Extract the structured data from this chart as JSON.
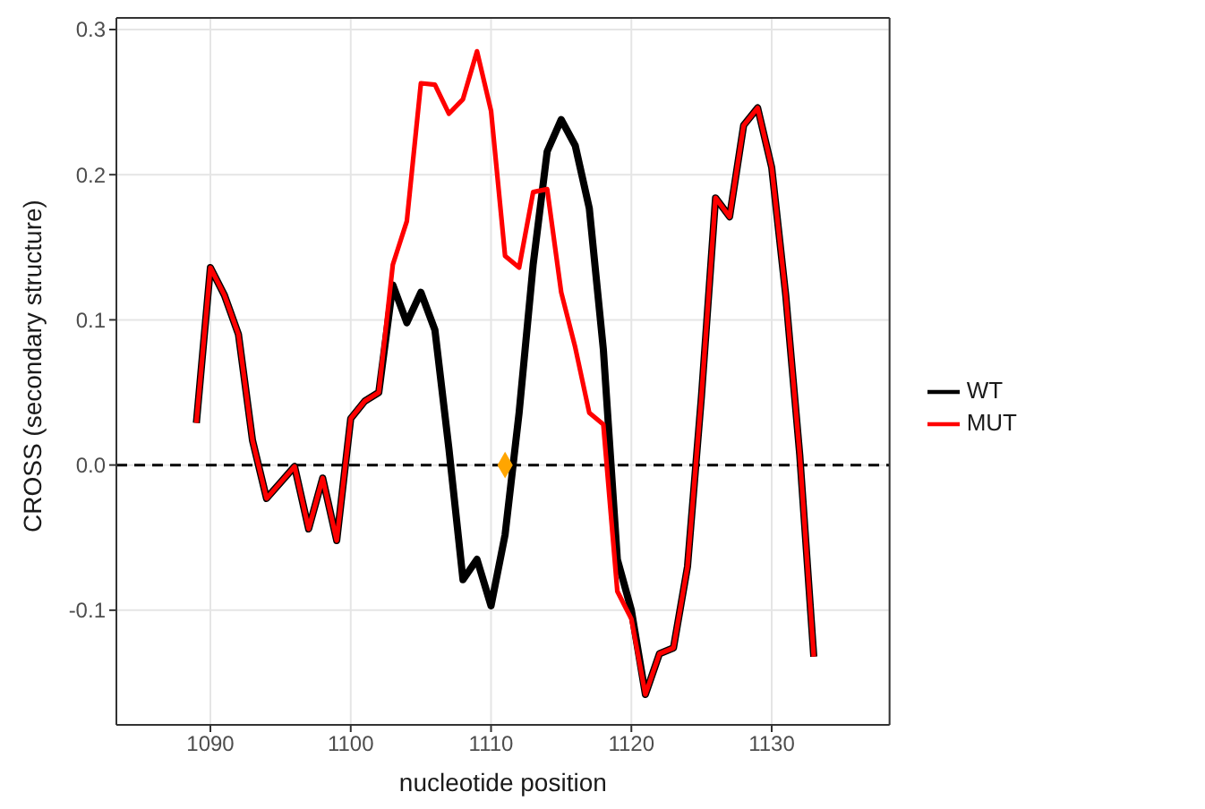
{
  "chart_data": {
    "type": "line",
    "xlabel": "nucleotide position",
    "ylabel": "CROSS (secondary structure)",
    "x": [
      1089,
      1090,
      1091,
      1092,
      1093,
      1094,
      1095,
      1096,
      1097,
      1098,
      1099,
      1100,
      1101,
      1102,
      1103,
      1104,
      1105,
      1106,
      1107,
      1108,
      1109,
      1110,
      1111,
      1112,
      1113,
      1114,
      1115,
      1116,
      1117,
      1118,
      1119,
      1120,
      1121,
      1122,
      1123,
      1124,
      1125,
      1126,
      1127,
      1128,
      1129,
      1130,
      1131,
      1132,
      1133
    ],
    "series": [
      {
        "name": "WT",
        "color": "#000000",
        "values": [
          0.029,
          0.136,
          0.117,
          0.09,
          0.017,
          -0.023,
          -0.012,
          -0.001,
          -0.044,
          -0.009,
          -0.052,
          0.032,
          0.044,
          0.05,
          0.124,
          0.098,
          0.119,
          0.093,
          0.011,
          -0.079,
          -0.065,
          -0.097,
          -0.048,
          0.036,
          0.138,
          0.216,
          0.238,
          0.22,
          0.177,
          0.08,
          -0.065,
          -0.1,
          -0.158,
          -0.13,
          -0.126,
          -0.07,
          0.048,
          0.184,
          0.171,
          0.234,
          0.246,
          0.205,
          0.117,
          0.007,
          -0.132
        ]
      },
      {
        "name": "MUT",
        "color": "#ff0000",
        "values": [
          0.029,
          0.136,
          0.117,
          0.09,
          0.017,
          -0.023,
          -0.012,
          -0.001,
          -0.044,
          -0.009,
          -0.052,
          0.032,
          0.044,
          0.05,
          0.138,
          0.168,
          0.263,
          0.262,
          0.242,
          0.252,
          0.285,
          0.244,
          0.144,
          0.136,
          0.188,
          0.19,
          0.119,
          0.081,
          0.036,
          0.028,
          -0.087,
          -0.106,
          -0.158,
          -0.13,
          -0.126,
          -0.07,
          0.048,
          0.184,
          0.171,
          0.234,
          0.246,
          0.205,
          0.117,
          0.007,
          -0.132
        ]
      },
      {
        "type": "scatter",
        "color": "#ffa500",
        "marker": "diamond",
        "x": [
          1111
        ],
        "values": [
          0
        ]
      }
    ],
    "xlim": [
      1083.3,
      1138.4
    ],
    "xticks": [
      1090,
      1100,
      1110,
      1120,
      1130
    ],
    "ylim": [
      -0.179,
      0.308
    ],
    "yticks": [
      {
        "value": -0.1,
        "label": "-0.1"
      },
      {
        "value": 0,
        "label": "0.0"
      },
      {
        "value": 0.1,
        "label": "0.1"
      },
      {
        "value": 0.2,
        "label": "0.2"
      },
      {
        "value": 0.3,
        "label": "0.3"
      }
    ],
    "ref_lines": [
      {
        "axis": "y",
        "value": 0,
        "color": "#000000",
        "line_style": "dashed"
      }
    ],
    "grid": true,
    "legend": "right",
    "line_style": "solid"
  }
}
